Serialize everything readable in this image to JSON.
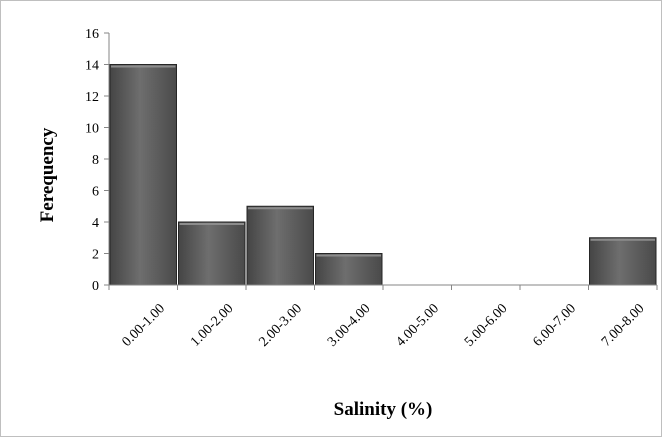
{
  "chart_data": {
    "type": "bar",
    "xlabel": "Salinity (%)",
    "ylabel": "Ferequency",
    "categories": [
      "0.00-1.00",
      "1.00-2.00",
      "2.00-3.00",
      "3.00-4.00",
      "4.00-5.00",
      "5.00-6.00",
      "6.00-7.00",
      "7.00-8.00"
    ],
    "values": [
      14,
      4,
      5,
      2,
      0,
      0,
      0,
      3
    ],
    "ylim": [
      0,
      16
    ],
    "yticks": [
      0,
      2,
      4,
      6,
      8,
      10,
      12,
      14,
      16
    ],
    "grid": false,
    "legend": "none",
    "colors": {
      "bar_fill": "#595959",
      "bar_highlight": "#8c8c8c",
      "bar_border": "#262626",
      "axis": "#868686"
    }
  }
}
